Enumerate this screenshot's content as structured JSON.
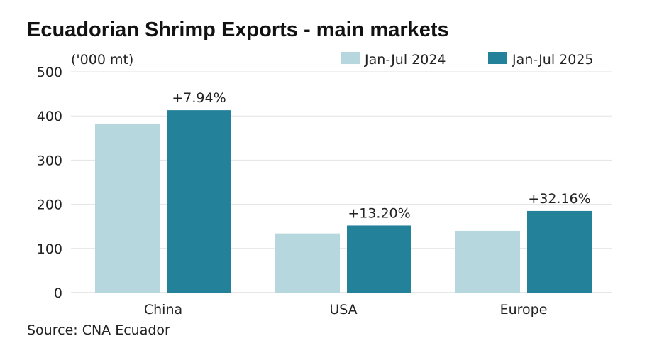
{
  "title": "Ecuadorian Shrimp Exports - main markets",
  "source": "Source: CNA Ecuador",
  "chart_data": {
    "type": "bar",
    "unit_label": "('000 mt)",
    "categories": [
      "China",
      "USA",
      "Europe"
    ],
    "series": [
      {
        "name": "Jan-Jul 2024",
        "color": "#b7d7de",
        "values": [
          382,
          134,
          140
        ]
      },
      {
        "name": "Jan-Jul 2025",
        "color": "#238199",
        "values": [
          413,
          152,
          185
        ]
      }
    ],
    "growth_labels": [
      "+7.94%",
      "+13.20%",
      "+32.16%"
    ],
    "ylim": [
      0,
      500
    ],
    "yticks": [
      0,
      100,
      200,
      300,
      400,
      500
    ],
    "grid": true,
    "legend_position": "top-right"
  }
}
